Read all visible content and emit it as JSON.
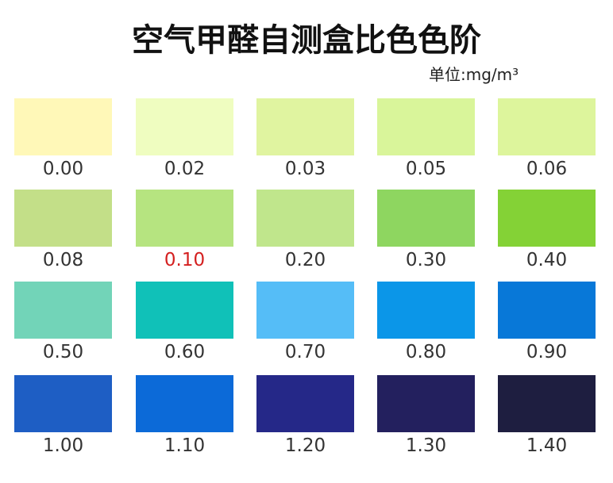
{
  "title": "空气甲醛自测盒比色色阶",
  "unit": "单位:mg/m³",
  "swatches": [
    {
      "label": "0.00",
      "color": "#fff8b8"
    },
    {
      "label": "0.02",
      "color": "#effdc0"
    },
    {
      "label": "0.03",
      "color": "#e0f4a0"
    },
    {
      "label": "0.05",
      "color": "#d9f59a"
    },
    {
      "label": "0.06",
      "color": "#ddf59c"
    },
    {
      "label": "0.08",
      "color": "#c3df88"
    },
    {
      "label": "0.10",
      "color": "#b6e480",
      "label_color": "#d42020"
    },
    {
      "label": "0.20",
      "color": "#c0e68c"
    },
    {
      "label": "0.30",
      "color": "#8ed660"
    },
    {
      "label": "0.40",
      "color": "#84d236"
    },
    {
      "label": "0.50",
      "color": "#72d4b8"
    },
    {
      "label": "0.60",
      "color": "#10c1b8"
    },
    {
      "label": "0.70",
      "color": "#55bdf7"
    },
    {
      "label": "0.80",
      "color": "#0b96e8"
    },
    {
      "label": "0.90",
      "color": "#0878d8"
    },
    {
      "label": "1.00",
      "color": "#1e5ec4"
    },
    {
      "label": "1.10",
      "color": "#0c6ad8"
    },
    {
      "label": "1.20",
      "color": "#252888"
    },
    {
      "label": "1.30",
      "color": "#23205e"
    },
    {
      "label": "1.40",
      "color": "#1e1e40"
    }
  ]
}
